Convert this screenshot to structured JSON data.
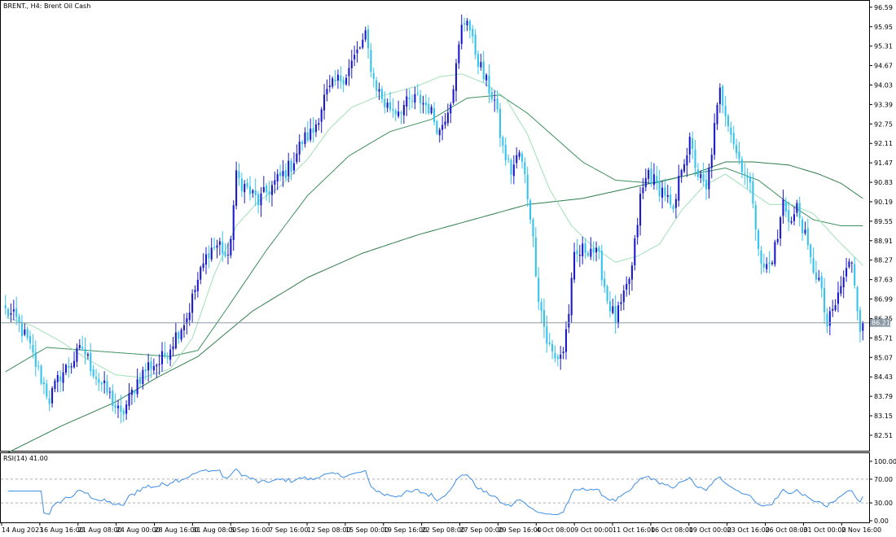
{
  "header": {
    "symbol_line": "BRENT., H4:  Brent Oil Cash"
  },
  "price_label": "86.21",
  "indicator": {
    "label": "RSI(14) 41.00"
  },
  "colors": {
    "bull": "#1a1acc",
    "bear": "#33c3ee",
    "ma_fast": "#9fe0b8",
    "ma_mid": "#3e8f5c",
    "ma_slow": "#2f7d4a",
    "rsi": "#3d8ee6",
    "grid": "#b0b0b0",
    "price_line": "#8c9aa6",
    "price_tag": "#8c9aa6"
  },
  "chart_data": [
    {
      "type": "candlestick",
      "title": "BRENT., H4:  Brent Oil Cash",
      "ylim": [
        82.0,
        96.8
      ],
      "y_ticks": [
        "96.59",
        "95.95",
        "95.31",
        "94.67",
        "94.03",
        "93.39",
        "92.75",
        "92.11",
        "91.47",
        "90.83",
        "90.19",
        "89.55",
        "88.91",
        "88.27",
        "87.63",
        "86.99",
        "86.35",
        "85.71",
        "85.07",
        "84.43",
        "83.79",
        "83.15",
        "82.51"
      ],
      "x_tick_labels": [
        "14 Aug 2023",
        "16 Aug 16:00",
        "21 Aug 08:00",
        "24 Aug 00:00",
        "28 Aug 16:00",
        "31 Aug 08:00",
        "5 Sep 16:00",
        "7 Sep 16:00",
        "12 Sep 08:00",
        "15 Sep 00:00",
        "19 Sep 16:00",
        "22 Sep 08:00",
        "27 Sep 00:00",
        "29 Sep 16:00",
        "4 Oct 08:00",
        "9 Oct 00:00",
        "11 Oct 16:00",
        "16 Oct 08:00",
        "19 Oct 00:00",
        "23 Oct 16:00",
        "26 Oct 08:00",
        "31 Oct 00:00",
        "2 Nov 16:00"
      ],
      "last_price": 86.21,
      "close_anchors": [
        [
          0,
          86.6
        ],
        [
          4,
          86.3
        ],
        [
          8,
          85.6
        ],
        [
          12,
          84.6
        ],
        [
          16,
          83.7
        ],
        [
          20,
          84.5
        ],
        [
          24,
          84.9
        ],
        [
          28,
          85.4
        ],
        [
          31,
          84.8
        ],
        [
          34,
          84.3
        ],
        [
          38,
          83.8
        ],
        [
          42,
          83.1
        ],
        [
          45,
          83.7
        ],
        [
          48,
          84.3
        ],
        [
          52,
          84.8
        ],
        [
          56,
          84.9
        ],
        [
          59,
          85.3
        ],
        [
          62,
          85.8
        ],
        [
          66,
          86.4
        ],
        [
          70,
          87.6
        ],
        [
          74,
          88.6
        ],
        [
          78,
          88.8
        ],
        [
          81,
          88.2
        ],
        [
          84,
          91.0
        ],
        [
          88,
          90.6
        ],
        [
          92,
          90.2
        ],
        [
          96,
          90.6
        ],
        [
          100,
          91.0
        ],
        [
          104,
          91.4
        ],
        [
          108,
          92.2
        ],
        [
          112,
          92.5
        ],
        [
          116,
          93.6
        ],
        [
          120,
          94.1
        ],
        [
          124,
          94.4
        ],
        [
          128,
          95.1
        ],
        [
          131,
          95.6
        ],
        [
          134,
          94.2
        ],
        [
          138,
          93.4
        ],
        [
          142,
          93.2
        ],
        [
          146,
          93.4
        ],
        [
          150,
          93.6
        ],
        [
          154,
          93.3
        ],
        [
          158,
          92.5
        ],
        [
          162,
          93.6
        ],
        [
          164,
          94.6
        ],
        [
          166,
          95.9
        ],
        [
          168,
          96.3
        ],
        [
          170,
          95.4
        ],
        [
          174,
          94.3
        ],
        [
          178,
          93.5
        ],
        [
          181,
          91.9
        ],
        [
          184,
          91.2
        ],
        [
          187,
          91.8
        ],
        [
          189,
          91.0
        ],
        [
          191,
          89.8
        ],
        [
          194,
          87.1
        ],
        [
          197,
          85.6
        ],
        [
          200,
          85.0
        ],
        [
          203,
          85.3
        ],
        [
          205,
          86.6
        ],
        [
          207,
          88.3
        ],
        [
          210,
          88.6
        ],
        [
          213,
          88.7
        ],
        [
          216,
          88.3
        ],
        [
          219,
          87.0
        ],
        [
          222,
          86.3
        ],
        [
          225,
          87.0
        ],
        [
          228,
          88.0
        ],
        [
          231,
          90.3
        ],
        [
          234,
          91.2
        ],
        [
          237,
          90.7
        ],
        [
          240,
          90.5
        ],
        [
          243,
          89.7
        ],
        [
          246,
          91.4
        ],
        [
          249,
          92.1
        ],
        [
          252,
          91.1
        ],
        [
          255,
          90.5
        ],
        [
          258,
          92.6
        ],
        [
          260,
          93.8
        ],
        [
          263,
          92.9
        ],
        [
          266,
          91.8
        ],
        [
          269,
          91.2
        ],
        [
          272,
          90.3
        ],
        [
          275,
          88.0
        ],
        [
          278,
          88.1
        ],
        [
          281,
          89.0
        ],
        [
          283,
          90.2
        ],
        [
          286,
          89.5
        ],
        [
          288,
          90.0
        ],
        [
          290,
          89.4
        ],
        [
          293,
          88.2
        ],
        [
          296,
          87.6
        ],
        [
          299,
          86.1
        ],
        [
          302,
          86.8
        ],
        [
          305,
          87.7
        ],
        [
          308,
          88.3
        ],
        [
          311,
          86.1
        ],
        [
          312,
          86.21
        ]
      ],
      "ma_fast_anchors": [
        [
          0,
          86.4
        ],
        [
          10,
          86.1
        ],
        [
          20,
          85.6
        ],
        [
          30,
          85.0
        ],
        [
          40,
          84.5
        ],
        [
          50,
          84.4
        ],
        [
          60,
          84.7
        ],
        [
          68,
          85.7
        ],
        [
          76,
          87.8
        ],
        [
          84,
          89.4
        ],
        [
          92,
          90.2
        ],
        [
          100,
          90.7
        ],
        [
          110,
          91.6
        ],
        [
          118,
          92.6
        ],
        [
          126,
          93.3
        ],
        [
          134,
          93.6
        ],
        [
          142,
          93.8
        ],
        [
          150,
          94.0
        ],
        [
          158,
          94.3
        ],
        [
          166,
          94.4
        ],
        [
          174,
          94.1
        ],
        [
          182,
          93.6
        ],
        [
          190,
          92.4
        ],
        [
          198,
          90.6
        ],
        [
          206,
          89.4
        ],
        [
          214,
          88.7
        ],
        [
          222,
          88.2
        ],
        [
          230,
          88.4
        ],
        [
          238,
          88.8
        ],
        [
          246,
          89.9
        ],
        [
          254,
          90.7
        ],
        [
          262,
          91.1
        ],
        [
          270,
          90.6
        ],
        [
          278,
          90.1
        ],
        [
          286,
          90.1
        ],
        [
          294,
          89.8
        ],
        [
          302,
          89.0
        ],
        [
          312,
          88.1
        ]
      ],
      "ma_mid_anchors": [
        [
          0,
          84.6
        ],
        [
          15,
          85.4
        ],
        [
          30,
          85.3
        ],
        [
          45,
          85.2
        ],
        [
          60,
          85.1
        ],
        [
          70,
          85.3
        ],
        [
          80,
          86.6
        ],
        [
          95,
          88.6
        ],
        [
          110,
          90.4
        ],
        [
          125,
          91.7
        ],
        [
          140,
          92.5
        ],
        [
          155,
          92.9
        ],
        [
          168,
          93.6
        ],
        [
          180,
          93.7
        ],
        [
          190,
          93.1
        ],
        [
          200,
          92.3
        ],
        [
          210,
          91.5
        ],
        [
          222,
          90.9
        ],
        [
          236,
          90.8
        ],
        [
          250,
          91.1
        ],
        [
          262,
          91.3
        ],
        [
          274,
          90.9
        ],
        [
          284,
          90.2
        ],
        [
          294,
          89.6
        ],
        [
          304,
          89.4
        ],
        [
          312,
          89.4
        ]
      ],
      "ma_slow_anchors": [
        [
          0,
          81.9
        ],
        [
          20,
          82.8
        ],
        [
          40,
          83.6
        ],
        [
          55,
          84.4
        ],
        [
          70,
          85.1
        ],
        [
          90,
          86.6
        ],
        [
          110,
          87.7
        ],
        [
          130,
          88.5
        ],
        [
          150,
          89.1
        ],
        [
          170,
          89.6
        ],
        [
          190,
          90.1
        ],
        [
          210,
          90.3
        ],
        [
          230,
          90.7
        ],
        [
          250,
          91.1
        ],
        [
          262,
          91.5
        ],
        [
          272,
          91.5
        ],
        [
          285,
          91.4
        ],
        [
          296,
          91.1
        ],
        [
          304,
          90.8
        ],
        [
          312,
          90.3
        ]
      ]
    },
    {
      "type": "line",
      "title": "RSI(14) 41.00",
      "ylim": [
        0,
        100
      ],
      "y_ticks": [
        "100.00",
        "70.00",
        "30.00",
        "0.00"
      ],
      "levels": [
        70,
        30
      ],
      "current_value": 41.0
    }
  ]
}
